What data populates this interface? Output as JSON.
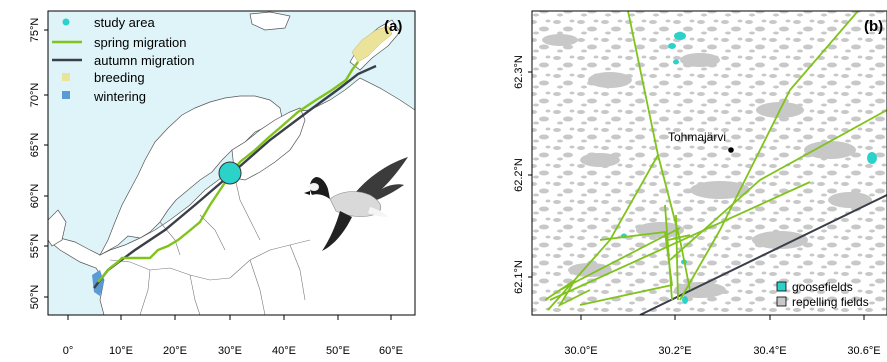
{
  "panel_a": {
    "label": "(a)",
    "y_ticks": [
      "50°N",
      "55°N",
      "60°N",
      "65°N",
      "70°N",
      "75°N"
    ],
    "x_ticks": [
      "0°",
      "10°E",
      "20°E",
      "30°E",
      "40°E",
      "50°E",
      "60°E"
    ],
    "legend": [
      {
        "label": "study area",
        "symbol": "dot",
        "color": "#2ad2c9"
      },
      {
        "label": "spring migration",
        "symbol": "line",
        "color": "#7fc31c"
      },
      {
        "label": "autumn migration",
        "symbol": "line",
        "color": "#3a3f4a"
      },
      {
        "label": "breeding",
        "symbol": "square",
        "color": "#ece39a"
      },
      {
        "label": "wintering",
        "symbol": "square",
        "color": "#5b9bd5"
      }
    ]
  },
  "panel_b": {
    "label": "(b)",
    "y_ticks": [
      "62.1°N",
      "62.2°N",
      "62.3°N"
    ],
    "x_ticks": [
      "30.0°E",
      "30.2°E",
      "30.4°E",
      "30.6°E"
    ],
    "place_label": "Tohmajärvi",
    "legend": [
      {
        "label": "goosefields",
        "color": "#2ad2c9"
      },
      {
        "label": "repelling fields",
        "color": "#c8c8c8"
      }
    ]
  },
  "colors": {
    "sea": "#dff4f8",
    "land": "#ffffff",
    "spring": "#7fc31c",
    "autumn": "#3a3f4a",
    "fields": "#c8c8c8",
    "goosefields": "#2ad2c9"
  }
}
